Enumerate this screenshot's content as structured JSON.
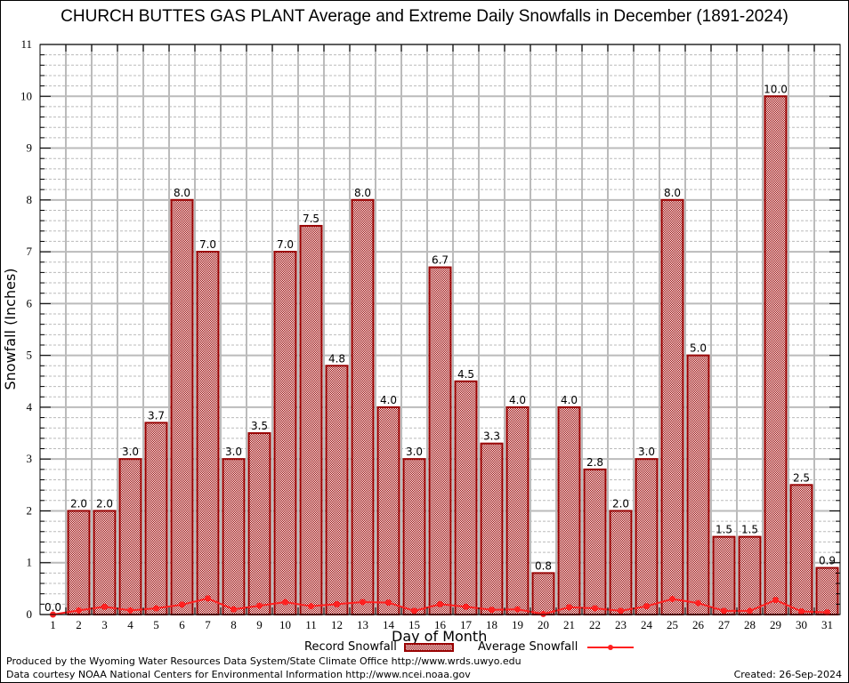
{
  "chart_data": {
    "type": "bar",
    "title": "CHURCH BUTTES GAS PLANT Average and Extreme Daily Snowfalls in December (1891-2024)",
    "xlabel": "Day of Month",
    "ylabel": "Snowfall (Inches)",
    "ylim": [
      0,
      11
    ],
    "yticks": [
      0,
      1,
      2,
      3,
      4,
      5,
      6,
      7,
      8,
      9,
      10,
      11
    ],
    "grid": true,
    "legend_placement": "bottom",
    "categories": [
      "1",
      "2",
      "3",
      "4",
      "5",
      "6",
      "7",
      "8",
      "9",
      "10",
      "11",
      "12",
      "13",
      "14",
      "15",
      "16",
      "17",
      "18",
      "19",
      "20",
      "21",
      "22",
      "23",
      "24",
      "25",
      "26",
      "27",
      "28",
      "29",
      "30",
      "31"
    ],
    "series": [
      {
        "name": "Record Snowfall",
        "type": "bar",
        "color": "#990000",
        "values": [
          0.0,
          2.0,
          2.0,
          3.0,
          3.7,
          8.0,
          7.0,
          3.0,
          3.5,
          7.0,
          7.5,
          4.8,
          8.0,
          4.0,
          3.0,
          6.7,
          4.5,
          3.3,
          4.0,
          0.8,
          4.0,
          2.8,
          2.0,
          3.0,
          8.0,
          5.0,
          1.5,
          1.5,
          10.0,
          2.5,
          0.9
        ],
        "labels": [
          "0.0",
          "2.0",
          "2.0",
          "3.0",
          "3.7",
          "8.0",
          "7.0",
          "3.0",
          "3.5",
          "7.0",
          "7.5",
          "4.8",
          "8.0",
          "4.0",
          "3.0",
          "6.7",
          "4.5",
          "3.3",
          "4.0",
          "0.8",
          "4.0",
          "2.8",
          "2.0",
          "3.0",
          "8.0",
          "5.0",
          "1.5",
          "1.5",
          "10.0",
          "2.5",
          "0.9"
        ]
      },
      {
        "name": "Average Snowfall",
        "type": "line",
        "color": "#ff2020",
        "values": [
          0.0,
          0.08,
          0.15,
          0.08,
          0.12,
          0.19,
          0.31,
          0.1,
          0.17,
          0.24,
          0.16,
          0.2,
          0.24,
          0.23,
          0.07,
          0.2,
          0.15,
          0.09,
          0.1,
          0.01,
          0.14,
          0.12,
          0.07,
          0.16,
          0.3,
          0.22,
          0.07,
          0.07,
          0.28,
          0.06,
          0.04
        ]
      }
    ]
  },
  "footer": {
    "produced_by": "Produced by the Wyoming Water Resources Data System/State Climate Office http://www.wrds.uwyo.edu",
    "data_courtesy": "Data courtesy NOAA National Centers for Environmental Information http://www.ncei.noaa.gov",
    "created": "Created: 26-Sep-2024"
  }
}
